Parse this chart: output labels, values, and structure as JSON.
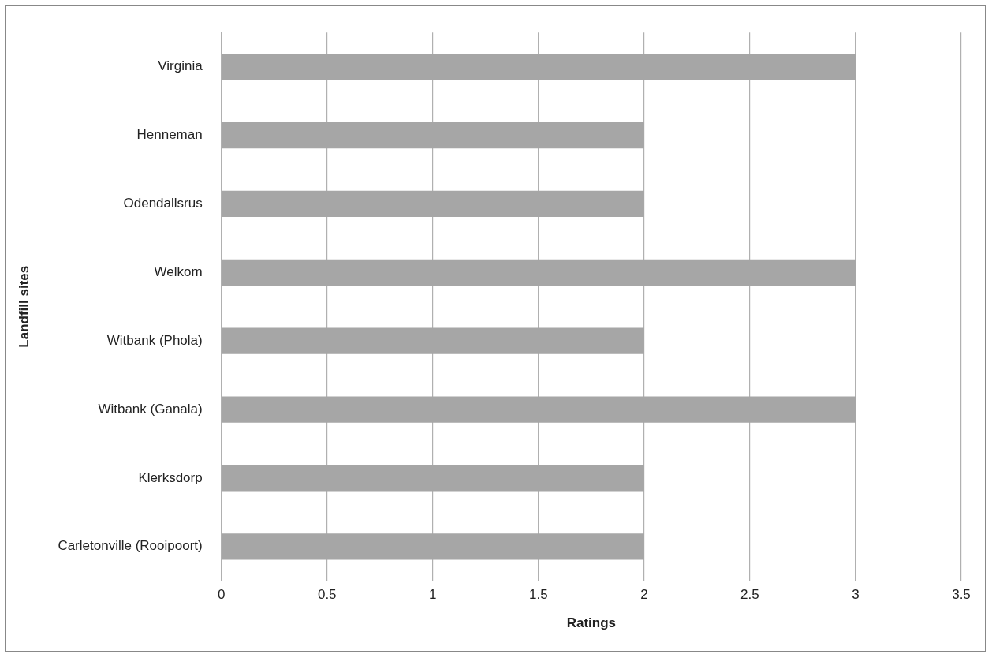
{
  "chart_data": {
    "type": "bar",
    "orientation": "horizontal",
    "xlabel": "Ratings",
    "ylabel": "Landfill sites",
    "categories": [
      "Virginia",
      "Henneman",
      "Odendallsrus",
      "Welkom",
      "Witbank (Phola)",
      "Witbank (Ganala)",
      "Klerksdorp",
      "Carletonville (Rooipoort)"
    ],
    "values": [
      3,
      2,
      2,
      3,
      2,
      3,
      2,
      2
    ],
    "color": "#a6a6a6",
    "xlim": [
      0,
      3.5
    ],
    "xticks": [
      0,
      0.5,
      1,
      1.5,
      2,
      2.5,
      3,
      3.5
    ],
    "grid": "x",
    "legend": false
  }
}
